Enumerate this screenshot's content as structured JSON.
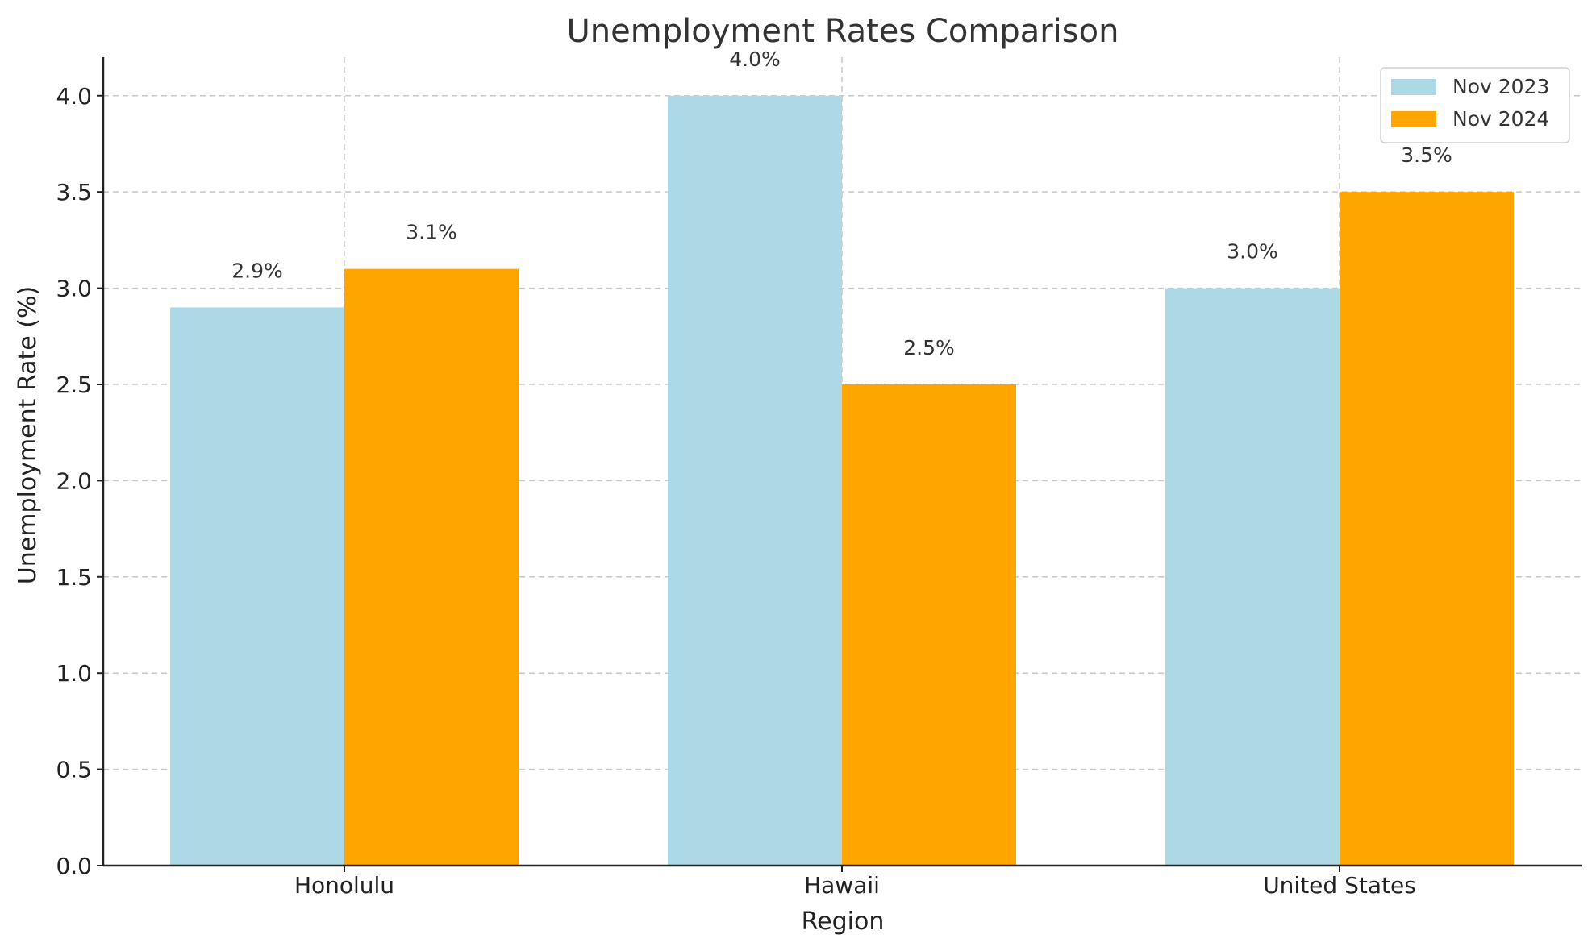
{
  "chart_data": {
    "type": "bar",
    "title": "Unemployment Rates Comparison",
    "xlabel": "Region",
    "ylabel": "Unemployment Rate (%)",
    "categories": [
      "Honolulu",
      "Hawaii",
      "United States"
    ],
    "series": [
      {
        "name": "Nov 2023",
        "values": [
          2.9,
          4.0,
          3.0
        ],
        "labels": [
          "2.9%",
          "4.0%",
          "3.0%"
        ],
        "color": "#add8e6"
      },
      {
        "name": "Nov 2024",
        "values": [
          3.1,
          2.5,
          3.5
        ],
        "labels": [
          "3.1%",
          "2.5%",
          "3.5%"
        ],
        "color": "#ffa500"
      }
    ],
    "ylim": [
      0,
      4.2
    ],
    "yticks": [
      0.0,
      0.5,
      1.0,
      1.5,
      2.0,
      2.5,
      3.0,
      3.5,
      4.0
    ],
    "ytick_labels": [
      "0.0",
      "0.5",
      "1.0",
      "1.5",
      "2.0",
      "2.5",
      "3.0",
      "3.5",
      "4.0"
    ],
    "grid": true,
    "legend_position": "top-right"
  }
}
